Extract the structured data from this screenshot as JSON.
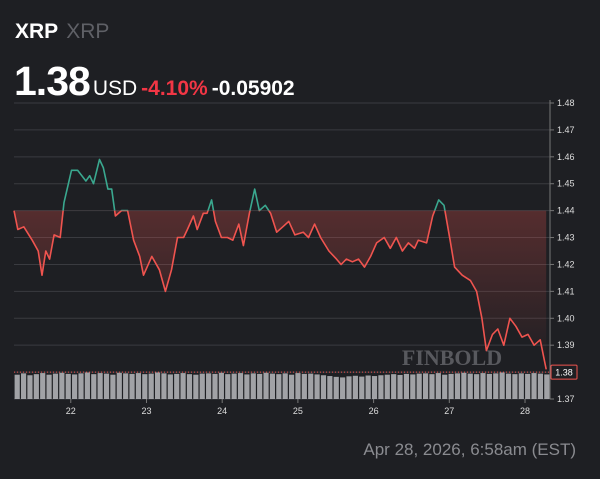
{
  "header": {
    "symbol": "XRP",
    "name": "XRP",
    "price": "1.38",
    "currency": "USD",
    "change_pct": "-4.10%",
    "change": "-0.05902"
  },
  "footer": {
    "timestamp": "Apr 28, 2026, 6:58am (EST)"
  },
  "chart_data": {
    "type": "line",
    "watermark": "FINBOLD",
    "xlim": [
      21.25,
      28.33
    ],
    "xticks": [
      22,
      23,
      24,
      25,
      26,
      27,
      28
    ],
    "ylim": [
      1.37,
      1.48
    ],
    "yticks": [
      1.37,
      1.38,
      1.39,
      {
        "value": 1.4,
        "label": "1.40"
      },
      1.41,
      1.42,
      1.43,
      1.44,
      1.45,
      1.46,
      1.47,
      1.48
    ],
    "grid": true,
    "baseline": 1.44,
    "up_color": "#3aa88f",
    "down_color": "#f0544f",
    "last_price": 1.38,
    "series": [
      {
        "name": "XRP",
        "x": [
          21.25,
          21.3,
          21.38,
          21.49,
          21.57,
          21.62,
          21.67,
          21.72,
          21.78,
          21.86,
          21.91,
          22.01,
          22.09,
          22.2,
          22.25,
          22.3,
          22.38,
          22.43,
          22.49,
          22.54,
          22.59,
          22.67,
          22.75,
          22.83,
          22.91,
          22.96,
          23.07,
          23.17,
          23.25,
          23.33,
          23.41,
          23.49,
          23.54,
          23.62,
          23.67,
          23.75,
          23.8,
          23.86,
          23.91,
          23.99,
          24.07,
          24.14,
          24.22,
          24.28,
          24.36,
          24.43,
          24.49,
          24.57,
          24.64,
          24.72,
          24.8,
          24.88,
          24.96,
          25.07,
          25.14,
          25.22,
          25.3,
          25.41,
          25.51,
          25.57,
          25.64,
          25.72,
          25.8,
          25.88,
          25.96,
          26.04,
          26.14,
          26.22,
          26.3,
          26.38,
          26.46,
          26.54,
          26.59,
          26.7,
          26.78,
          26.86,
          26.93,
          27.01,
          27.07,
          27.17,
          27.28,
          27.36,
          27.43,
          27.49,
          27.57,
          27.64,
          27.72,
          27.8,
          27.88,
          27.96,
          28.04,
          28.12,
          28.2,
          28.28
        ],
        "values": [
          1.44,
          1.433,
          1.434,
          1.429,
          1.425,
          1.416,
          1.425,
          1.422,
          1.431,
          1.43,
          1.443,
          1.455,
          1.455,
          1.451,
          1.453,
          1.45,
          1.459,
          1.456,
          1.448,
          1.448,
          1.438,
          1.44,
          1.44,
          1.429,
          1.423,
          1.416,
          1.423,
          1.418,
          1.41,
          1.418,
          1.43,
          1.43,
          1.433,
          1.438,
          1.433,
          1.439,
          1.439,
          1.444,
          1.436,
          1.43,
          1.43,
          1.429,
          1.435,
          1.427,
          1.439,
          1.448,
          1.44,
          1.442,
          1.439,
          1.432,
          1.434,
          1.436,
          1.431,
          1.432,
          1.43,
          1.435,
          1.43,
          1.425,
          1.422,
          1.42,
          1.422,
          1.421,
          1.422,
          1.419,
          1.423,
          1.428,
          1.43,
          1.426,
          1.43,
          1.425,
          1.428,
          1.426,
          1.429,
          1.428,
          1.438,
          1.444,
          1.442,
          1.429,
          1.419,
          1.416,
          1.414,
          1.41,
          1.4,
          1.388,
          1.394,
          1.396,
          1.39,
          1.4,
          1.397,
          1.393,
          1.394,
          1.39,
          1.392,
          1.381
        ]
      }
    ],
    "volume": {
      "color": "#b9babd",
      "vlim": [
        0,
        100
      ],
      "values": [
        90,
        95,
        88,
        92,
        96,
        90,
        94,
        97,
        93,
        91,
        95,
        98,
        92,
        96,
        94,
        90,
        97,
        95,
        93,
        96,
        92,
        94,
        98,
        95,
        91,
        93,
        96,
        92,
        90,
        94,
        95,
        93,
        97,
        92,
        94,
        96,
        91,
        95,
        93,
        97,
        94,
        92,
        95,
        90,
        96,
        93,
        94,
        91,
        88,
        85,
        82,
        80,
        84,
        86,
        83,
        87,
        85,
        88,
        90,
        92,
        89,
        93,
        91,
        94,
        95,
        92,
        96,
        90,
        93,
        95,
        97,
        94,
        92,
        96,
        93,
        95,
        98,
        94,
        92,
        95,
        93,
        96,
        94,
        91
      ]
    }
  }
}
